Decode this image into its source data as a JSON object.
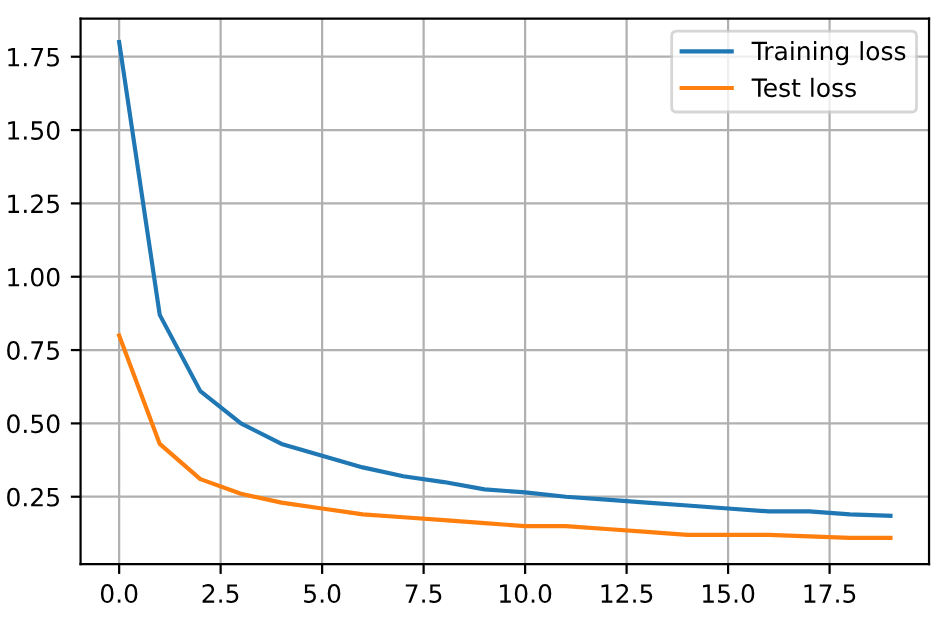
{
  "chart_data": {
    "type": "line",
    "x": [
      0,
      1,
      2,
      3,
      4,
      5,
      6,
      7,
      8,
      9,
      10,
      11,
      12,
      13,
      14,
      15,
      16,
      17,
      18,
      19
    ],
    "series": [
      {
        "name": "Training loss",
        "color": "#1f77b4",
        "values": [
          1.8,
          0.87,
          0.61,
          0.5,
          0.43,
          0.39,
          0.35,
          0.32,
          0.3,
          0.275,
          0.265,
          0.25,
          0.24,
          0.23,
          0.22,
          0.21,
          0.2,
          0.2,
          0.19,
          0.185
        ]
      },
      {
        "name": "Test loss",
        "color": "#ff7f0e",
        "values": [
          0.8,
          0.43,
          0.31,
          0.26,
          0.23,
          0.21,
          0.19,
          0.18,
          0.17,
          0.16,
          0.15,
          0.15,
          0.14,
          0.13,
          0.12,
          0.12,
          0.12,
          0.115,
          0.11,
          0.11
        ]
      }
    ],
    "xlim": [
      -0.95,
      19.95
    ],
    "ylim": [
      0.02,
      1.88
    ],
    "xticks": [
      {
        "value": 0,
        "label": "0.0"
      },
      {
        "value": 2.5,
        "label": "2.5"
      },
      {
        "value": 5,
        "label": "5.0"
      },
      {
        "value": 7.5,
        "label": "7.5"
      },
      {
        "value": 10,
        "label": "10.0"
      },
      {
        "value": 12.5,
        "label": "12.5"
      },
      {
        "value": 15,
        "label": "15.0"
      },
      {
        "value": 17.5,
        "label": "17.5"
      }
    ],
    "yticks": [
      {
        "value": 0.25,
        "label": "0.25"
      },
      {
        "value": 0.5,
        "label": "0.50"
      },
      {
        "value": 0.75,
        "label": "0.75"
      },
      {
        "value": 1.0,
        "label": "1.00"
      },
      {
        "value": 1.25,
        "label": "1.25"
      },
      {
        "value": 1.5,
        "label": "1.50"
      },
      {
        "value": 1.75,
        "label": "1.75"
      }
    ],
    "grid": true,
    "legend": "top right"
  }
}
